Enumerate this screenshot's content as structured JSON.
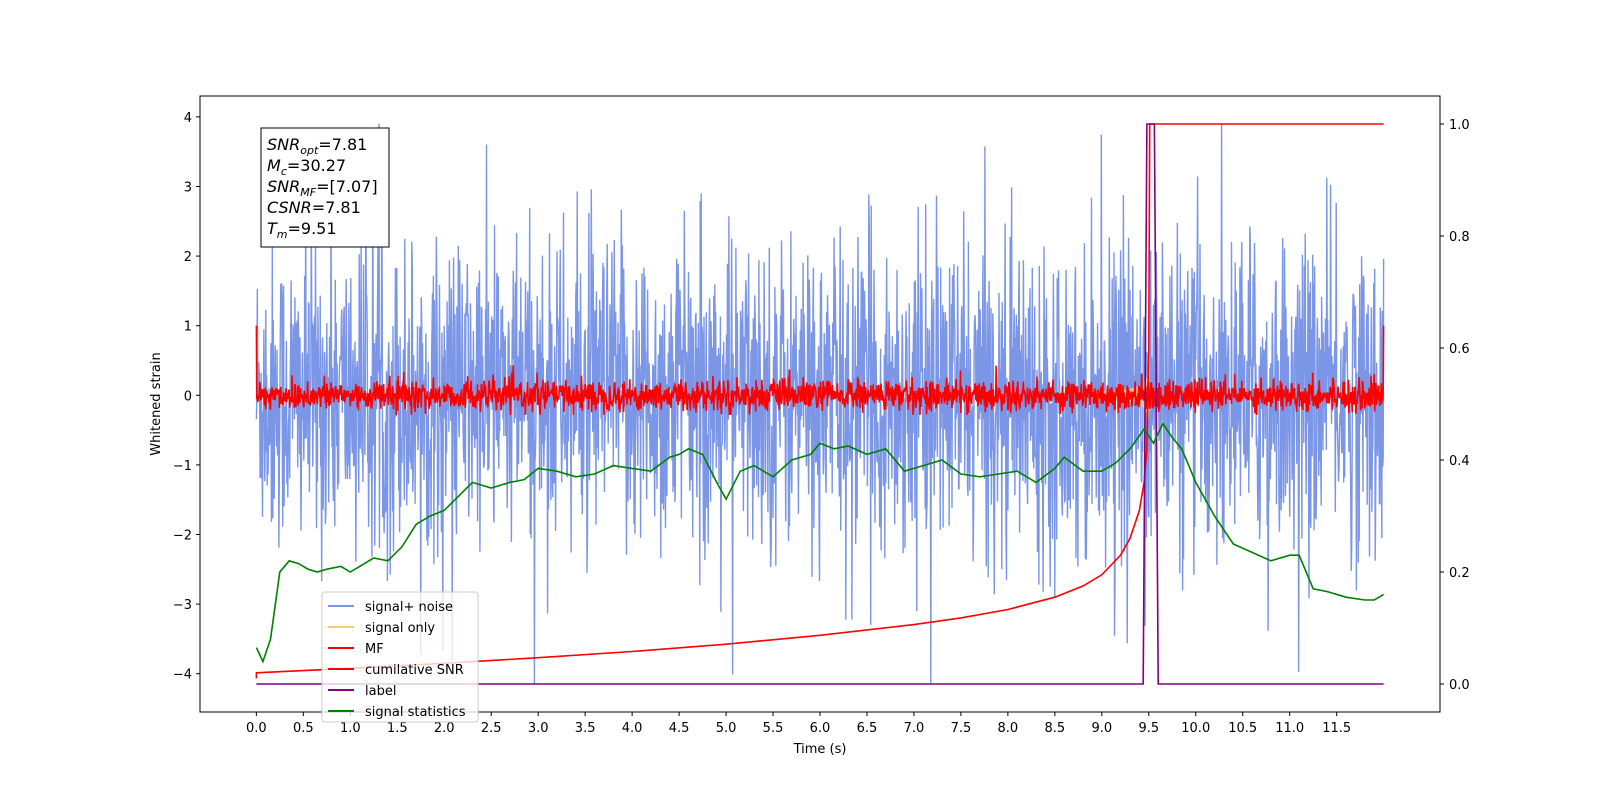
{
  "chart_data": {
    "type": "line",
    "title": "",
    "xlabel": "Time (s)",
    "ylabel": "Whitened strain",
    "y2label": "",
    "xlim": [
      -0.6,
      12.6
    ],
    "ylim": [
      -4.55,
      4.3
    ],
    "y2lim": [
      -0.05,
      1.05
    ],
    "x_ticks": [
      "0.0",
      "0.5",
      "1.0",
      "1.5",
      "2.0",
      "2.5",
      "3.0",
      "3.5",
      "4.0",
      "4.5",
      "5.0",
      "5.5",
      "6.0",
      "6.5",
      "7.0",
      "7.5",
      "8.0",
      "8.5",
      "9.0",
      "9.5",
      "10.0",
      "10.5",
      "11.0",
      "11.5"
    ],
    "y_ticks": [
      "4",
      "3",
      "2",
      "1",
      "0",
      "−1",
      "−2",
      "−3",
      "−4"
    ],
    "y2_ticks": [
      "1.0",
      "0.8",
      "0.6",
      "0.4",
      "0.2",
      "0.0"
    ],
    "grid": false,
    "legend_position": "lower-left",
    "annotation": [
      {
        "name": "SNR",
        "sub": "opt",
        "value": "=7.81"
      },
      {
        "name": "M",
        "sub": "c",
        "value": "=30.27"
      },
      {
        "name": "SNR",
        "sub": "MF",
        "value": "=[7.07]"
      },
      {
        "name": "CSNR",
        "sub": "",
        "value": "=7.81"
      },
      {
        "name": "T",
        "sub": "m",
        "value": "=9.51"
      }
    ],
    "series": [
      {
        "name": "signal+ noise",
        "color": "#7b96e6",
        "axis": "left",
        "noise_amplitude": 1.1,
        "x_range": [
          0,
          12
        ]
      },
      {
        "name": "signal only",
        "color": "#f5c87a",
        "axis": "left",
        "chirp_peak_x": 9.5,
        "chirp_peak_y": 0.4
      },
      {
        "name": "MF",
        "color": "#ff0000",
        "axis": "left",
        "noise_amplitude": 0.15,
        "edge_value": 1.0
      },
      {
        "name": "cumilative SNR",
        "color": "#ff0000",
        "axis": "right",
        "x": [
          0,
          1,
          2,
          3,
          4,
          5,
          6,
          7,
          7.5,
          8,
          8.5,
          8.8,
          9.0,
          9.2,
          9.3,
          9.4,
          9.45,
          9.48,
          9.5,
          9.51,
          12
        ],
        "y": [
          0.02,
          0.028,
          0.037,
          0.047,
          0.058,
          0.071,
          0.087,
          0.106,
          0.118,
          0.133,
          0.155,
          0.175,
          0.195,
          0.23,
          0.26,
          0.31,
          0.36,
          0.42,
          0.6,
          1.0,
          1.0
        ]
      },
      {
        "name": "label",
        "color": "#800080",
        "axis": "right",
        "x": [
          0,
          9.44,
          9.48,
          9.56,
          9.6,
          12
        ],
        "y": [
          0,
          0,
          1,
          1,
          0,
          0
        ]
      },
      {
        "name": "signal statistics",
        "color": "#008000",
        "axis": "right",
        "x": [
          0,
          0.07,
          0.15,
          0.25,
          0.35,
          0.45,
          0.55,
          0.65,
          0.75,
          0.9,
          1.0,
          1.1,
          1.25,
          1.4,
          1.55,
          1.7,
          1.85,
          2.0,
          2.15,
          2.3,
          2.5,
          2.7,
          2.85,
          3.0,
          3.2,
          3.4,
          3.6,
          3.8,
          4.0,
          4.2,
          4.4,
          4.5,
          4.6,
          4.75,
          4.9,
          5.0,
          5.15,
          5.3,
          5.5,
          5.7,
          5.9,
          6.0,
          6.15,
          6.3,
          6.5,
          6.7,
          6.9,
          7.1,
          7.3,
          7.5,
          7.7,
          7.9,
          8.1,
          8.3,
          8.5,
          8.6,
          8.8,
          9.0,
          9.15,
          9.3,
          9.45,
          9.55,
          9.65,
          9.75,
          9.85,
          10.0,
          10.2,
          10.4,
          10.6,
          10.8,
          11.0,
          11.1,
          11.25,
          11.4,
          11.6,
          11.8,
          11.9,
          12.0
        ],
        "y": [
          0.065,
          0.04,
          0.08,
          0.2,
          0.22,
          0.215,
          0.205,
          0.2,
          0.205,
          0.21,
          0.2,
          0.21,
          0.225,
          0.22,
          0.245,
          0.285,
          0.3,
          0.31,
          0.335,
          0.36,
          0.35,
          0.36,
          0.365,
          0.385,
          0.38,
          0.37,
          0.375,
          0.39,
          0.385,
          0.38,
          0.405,
          0.41,
          0.42,
          0.41,
          0.36,
          0.33,
          0.38,
          0.39,
          0.37,
          0.4,
          0.41,
          0.43,
          0.42,
          0.425,
          0.41,
          0.42,
          0.38,
          0.39,
          0.4,
          0.375,
          0.37,
          0.375,
          0.38,
          0.36,
          0.385,
          0.405,
          0.38,
          0.38,
          0.395,
          0.42,
          0.455,
          0.43,
          0.465,
          0.44,
          0.42,
          0.36,
          0.3,
          0.25,
          0.235,
          0.22,
          0.23,
          0.23,
          0.17,
          0.165,
          0.155,
          0.15,
          0.15,
          0.16
        ]
      }
    ]
  }
}
